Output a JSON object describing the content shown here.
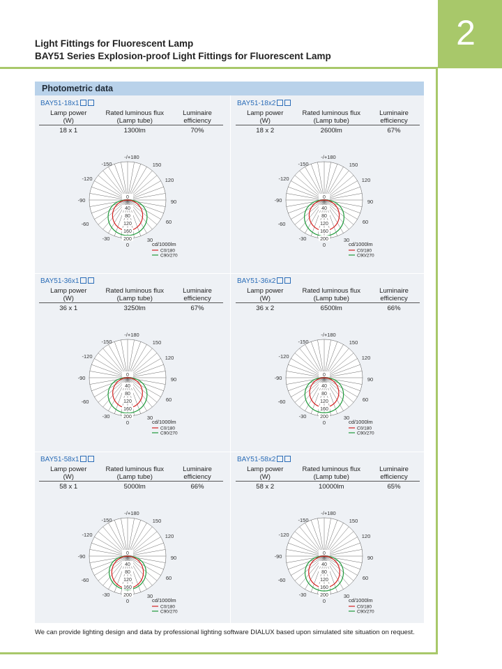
{
  "page": {
    "number": "2",
    "title": "Light Fittings for Fluorescent Lamp",
    "subtitle": "BAY51 Series Explosion-proof Light Fittings for Fluorescent Lamp",
    "section_title": "Photometric data",
    "footer_note": "We can provide lighting design and data by professional lighting software DIALUX based upon simulated site situation on request."
  },
  "table_headers": {
    "lamp_power": "Lamp power",
    "lamp_power_unit": "(W)",
    "flux": "Rated luminous flux",
    "flux_sub": "(Lamp tube)",
    "efficiency": "Luminaire",
    "efficiency_sub": "efficiency"
  },
  "polar_labels": {
    "angles": [
      "-/+180",
      "-150",
      "150",
      "-120",
      "120",
      "-90",
      "90",
      "-60",
      "60",
      "-30",
      "30",
      "0"
    ],
    "radial": [
      "0",
      "40",
      "80",
      "120",
      "160",
      "200"
    ],
    "unit": "cd/1000lm",
    "legend_c0": "C0/180",
    "legend_c90": "C90/270"
  },
  "colors": {
    "c0": "#d42020",
    "c90": "#1e9a3a",
    "model": "#2a6cb7",
    "accent": "#a8c86a"
  },
  "products": [
    {
      "model": "BAY51-18x1",
      "power": "18 x 1",
      "flux": "1300lm",
      "efficiency": "70%",
      "c0_peak": 160,
      "c90_peak": 185
    },
    {
      "model": "BAY51-18x2",
      "power": "18 x 2",
      "flux": "2600lm",
      "efficiency": "67%",
      "c0_peak": 160,
      "c90_peak": 188
    },
    {
      "model": "BAY51-36x1",
      "power": "36 x 1",
      "flux": "3250lm",
      "efficiency": "67%",
      "c0_peak": 158,
      "c90_peak": 185
    },
    {
      "model": "BAY51-36x2",
      "power": "36 x 2",
      "flux": "6500lm",
      "efficiency": "66%",
      "c0_peak": 155,
      "c90_peak": 183
    },
    {
      "model": "BAY51-58x1",
      "power": "58 x 1",
      "flux": "5000lm",
      "efficiency": "66%",
      "c0_peak": 168,
      "c90_peak": 175
    },
    {
      "model": "BAY51-58x2",
      "power": "58 x 2",
      "flux": "10000lm",
      "efficiency": "65%",
      "c0_peak": 165,
      "c90_peak": 182
    }
  ]
}
